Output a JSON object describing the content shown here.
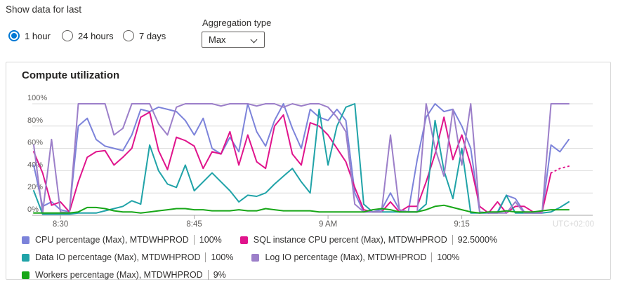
{
  "controls": {
    "show_data_label": "Show data for last",
    "radios": [
      {
        "label": "1 hour",
        "selected": true
      },
      {
        "label": "24 hours",
        "selected": false
      },
      {
        "label": "7 days",
        "selected": false
      }
    ],
    "aggregation": {
      "label": "Aggregation type",
      "value": "Max"
    }
  },
  "card": {
    "title": "Compute utilization"
  },
  "chart_data": {
    "type": "line",
    "title": "Compute utilization",
    "ylim": [
      0,
      100
    ],
    "y_tick_labels": [
      "0%",
      "20%",
      "40%",
      "60%",
      "80%",
      "100%"
    ],
    "x_tick_labels": [
      {
        "label": "8:30",
        "t": 3
      },
      {
        "label": "8:45",
        "t": 18
      },
      {
        "label": "9 AM",
        "t": 33
      },
      {
        "label": "9:15",
        "t": 48
      }
    ],
    "timezone_label": "UTC+02:00",
    "x_minutes_span": 60,
    "series": [
      {
        "name": "CPU percentage (Max), MTDWHPROD",
        "color": "#7c83da",
        "max_value": "100%",
        "dashed_tail": 0,
        "values": [
          45,
          8,
          12,
          5,
          3,
          80,
          87,
          68,
          62,
          60,
          58,
          72,
          95,
          93,
          97,
          95,
          93,
          85,
          72,
          87,
          60,
          55,
          70,
          57,
          100,
          75,
          62,
          85,
          100,
          78,
          60,
          95,
          88,
          85,
          95,
          85,
          20,
          3,
          3,
          5,
          20,
          5,
          3,
          50,
          88,
          100,
          93,
          95,
          80,
          60,
          3,
          2,
          3,
          18,
          15,
          3,
          2,
          2,
          63,
          57,
          68
        ]
      },
      {
        "name": "SQL instance CPU percent (Max), MTDWHPROD",
        "color": "#e0148c",
        "max_value": "92.5000%",
        "dashed_tail": 2,
        "values": [
          57,
          38,
          9,
          12,
          3,
          30,
          52,
          57,
          58,
          45,
          52,
          60,
          88,
          92.5,
          58,
          41,
          70,
          67,
          62,
          42,
          57,
          55,
          75,
          45,
          72,
          48,
          42,
          80,
          90,
          55,
          45,
          83,
          80,
          72,
          60,
          48,
          25,
          5,
          3,
          3,
          12,
          3,
          8,
          8,
          30,
          55,
          88,
          50,
          72,
          45,
          8,
          2,
          12,
          2,
          8,
          8,
          3,
          3,
          38,
          42,
          44
        ]
      },
      {
        "name": "Data IO percentage (Max), MTDWHPROD",
        "color": "#20a3a8",
        "max_value": "100%",
        "dashed_tail": 0,
        "values": [
          22,
          1,
          1,
          1,
          1,
          2,
          2,
          2,
          4,
          6,
          8,
          13,
          10,
          63,
          40,
          28,
          25,
          45,
          22,
          30,
          38,
          30,
          22,
          12,
          18,
          17,
          20,
          28,
          35,
          42,
          30,
          20,
          95,
          45,
          80,
          97,
          100,
          10,
          3,
          3,
          3,
          3,
          3,
          3,
          10,
          85,
          40,
          15,
          60,
          2,
          2,
          2,
          2,
          18,
          2,
          2,
          2,
          2,
          3,
          7,
          12
        ]
      },
      {
        "name": "Log IO percentage (Max), MTDWHPROD",
        "color": "#9c7fc9",
        "max_value": "100%",
        "dashed_tail": 0,
        "values": [
          63,
          2,
          68,
          3,
          2,
          100,
          100,
          100,
          100,
          72,
          78,
          100,
          100,
          100,
          82,
          72,
          97,
          100,
          100,
          100,
          100,
          98,
          100,
          100,
          100,
          98,
          100,
          100,
          97,
          100,
          98,
          100,
          100,
          97,
          88,
          75,
          10,
          3,
          3,
          3,
          72,
          5,
          3,
          3,
          100,
          60,
          35,
          95,
          45,
          100,
          3,
          2,
          2,
          2,
          12,
          2,
          2,
          2,
          100,
          100,
          100
        ]
      },
      {
        "name": "Workers percentage (Max), MTDWHPROD",
        "color": "#17a617",
        "max_value": "9%",
        "dashed_tail": 0,
        "values": [
          2,
          2,
          2,
          2,
          2,
          3,
          7,
          7,
          6,
          4,
          3,
          3,
          2,
          3,
          4,
          5,
          6,
          6,
          5,
          5,
          4,
          4,
          4,
          5,
          4,
          4,
          6,
          5,
          4,
          4,
          4,
          4,
          3,
          3,
          3,
          3,
          3,
          3,
          5,
          6,
          5,
          3,
          3,
          3,
          5,
          8,
          9,
          7,
          5,
          3,
          2,
          3,
          3,
          4,
          3,
          3,
          3,
          4,
          5,
          5,
          5
        ]
      }
    ]
  },
  "legend": {
    "items": [
      {
        "label": "CPU percentage (Max), MTDWHPROD",
        "value": "100%"
      },
      {
        "label": "SQL instance CPU percent (Max), MTDWHPROD",
        "value": "92.5000%"
      },
      {
        "label": "Data IO percentage (Max), MTDWHPROD",
        "value": "100%"
      },
      {
        "label": "Log IO percentage (Max), MTDWHPROD",
        "value": "100%"
      },
      {
        "label": "Workers percentage (Max), MTDWHPROD",
        "value": "9%"
      }
    ]
  }
}
